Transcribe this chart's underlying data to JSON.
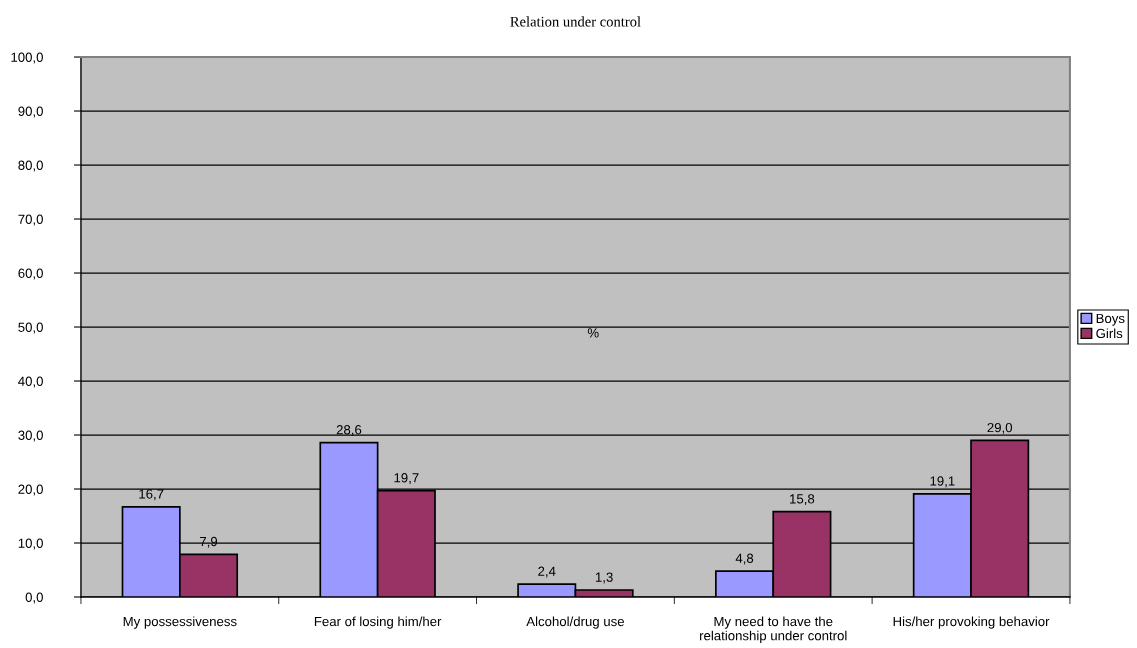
{
  "chart_data": {
    "type": "bar",
    "title": "Relation under control",
    "categories": [
      "My possessiveness",
      "Fear of losing him/her",
      "Alcohol/drug use",
      "My need to have the\nrelationship under control",
      "His/her provoking behavior"
    ],
    "series": [
      {
        "name": "Boys",
        "color": "#9999ff",
        "values": [
          16.7,
          28.6,
          2.4,
          4.8,
          19.1
        ],
        "value_labels": [
          "16,7",
          "28,6",
          "2,4",
          "4,8",
          "19,1"
        ]
      },
      {
        "name": "Girls",
        "color": "#993366",
        "values": [
          7.9,
          19.7,
          1.3,
          15.8,
          29.0
        ],
        "value_labels": [
          "7,9",
          "19,7",
          "1,3",
          "15,8",
          "29,0"
        ]
      }
    ],
    "ylim": [
      0,
      100
    ],
    "yticks": [
      {
        "value": 0,
        "label": "0,0"
      },
      {
        "value": 10,
        "label": "10,0"
      },
      {
        "value": 20,
        "label": "20,0"
      },
      {
        "value": 30,
        "label": "30,0"
      },
      {
        "value": 40,
        "label": "40,0"
      },
      {
        "value": 50,
        "label": "50,0"
      },
      {
        "value": 60,
        "label": "60,0"
      },
      {
        "value": 70,
        "label": "70,0"
      },
      {
        "value": 80,
        "label": "80,0"
      },
      {
        "value": 90,
        "label": "90,0"
      },
      {
        "value": 100,
        "label": "100,0"
      }
    ],
    "annotations": [
      "%"
    ],
    "grid": "y",
    "legend": "right"
  }
}
